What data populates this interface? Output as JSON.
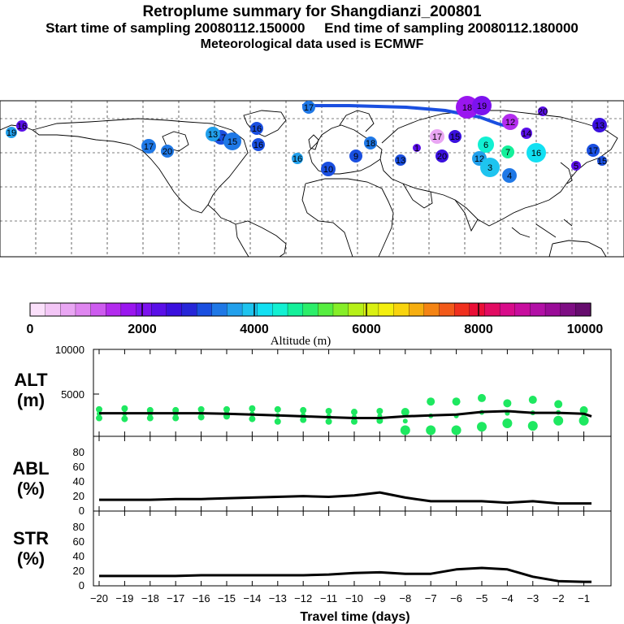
{
  "header": {
    "title": "Retroplume summary for Shangdianzi_200801",
    "sampling": "Start time of sampling 20080112.150000     End time of sampling 20080112.180000",
    "met": "Meteorological data used is ECMWF"
  },
  "colors": {
    "background": "#ffffff",
    "plume_green": "#1ee860",
    "path_blue": "#1a4fe0",
    "line": "#000000",
    "colorbar": [
      "#fbe0fb",
      "#f3c6f6",
      "#e9a6f3",
      "#df86f0",
      "#cd5bef",
      "#b32cee",
      "#9a16ef",
      "#7c12ee",
      "#5a0fe8",
      "#3a10de",
      "#2626d8",
      "#1a4fe0",
      "#1f78e6",
      "#22a0ec",
      "#1ec4ef",
      "#12e0f2",
      "#12f0d2",
      "#14f09a",
      "#2cee6a",
      "#56ee40",
      "#86ee28",
      "#b6f018",
      "#daf012",
      "#f4ef0e",
      "#f8d40e",
      "#f6ae10",
      "#f48414",
      "#f25a1a",
      "#f0301e",
      "#ea0e36",
      "#e20c62",
      "#d80c8a",
      "#c80e9e",
      "#b210a6",
      "#9a0c98",
      "#7e0e84",
      "#660c6e"
    ]
  },
  "colorbar": {
    "ticks": [
      "0",
      "2000",
      "4000",
      "6000",
      "8000",
      "10000"
    ],
    "title": "Altitude (m)"
  },
  "map_markers": [
    {
      "label": "16",
      "color": "#5a0fe8",
      "size": 7
    },
    {
      "label": "17",
      "color": "#1f78e6",
      "size": 8
    },
    {
      "label": "18",
      "color": "#9a16ef",
      "size": 14
    },
    {
      "label": "19",
      "color": "#7c12ee",
      "size": 12
    },
    {
      "label": "12",
      "color": "#b32cee",
      "size": 10
    },
    {
      "label": "20",
      "color": "#5a0fe8",
      "size": 6
    },
    {
      "label": "13",
      "color": "#3a10de",
      "size": 9
    },
    {
      "label": "14",
      "color": "#5a0fe8",
      "size": 7
    },
    {
      "label": "15",
      "color": "#3a10de",
      "size": 8
    },
    {
      "label": "16",
      "color": "#12e0f2",
      "size": 12
    },
    {
      "label": "6",
      "color": "#12f0d2",
      "size": 10
    },
    {
      "label": "17",
      "color": "#e9a6f3",
      "size": 9
    },
    {
      "label": "12",
      "color": "#22a0ec",
      "size": 9
    },
    {
      "label": "7",
      "color": "#14f09a",
      "size": 8
    },
    {
      "label": "4",
      "color": "#1f78e6",
      "size": 9
    },
    {
      "label": "3",
      "color": "#1ec4ef",
      "size": 12
    },
    {
      "label": "1",
      "color": "#5a0fe8",
      "size": 5
    },
    {
      "label": "5",
      "color": "#5a0fe8",
      "size": 6
    },
    {
      "label": "10",
      "color": "#1a4fe0",
      "size": 9
    },
    {
      "label": "9",
      "color": "#1a4fe0",
      "size": 8
    },
    {
      "label": "16",
      "color": "#1a4fe0",
      "size": 8
    },
    {
      "label": "17",
      "color": "#1a4fe0",
      "size": 9
    },
    {
      "label": "15",
      "color": "#1f78e6",
      "size": 11
    },
    {
      "label": "13",
      "color": "#22a0ec",
      "size": 9
    },
    {
      "label": "16",
      "color": "#1a4fe0",
      "size": 8
    },
    {
      "label": "17",
      "color": "#1f78e6",
      "size": 9
    },
    {
      "label": "20",
      "color": "#1f78e6",
      "size": 8
    },
    {
      "label": "19",
      "color": "#22a0ec",
      "size": 7
    },
    {
      "label": "18",
      "color": "#1f78e6",
      "size": 8
    },
    {
      "label": "13",
      "color": "#1a4fe0",
      "size": 7
    },
    {
      "label": "15",
      "color": "#1a4fe0",
      "size": 6
    },
    {
      "label": "20",
      "color": "#3a10de",
      "size": 8
    },
    {
      "label": "17",
      "color": "#1a4fe0",
      "size": 8
    },
    {
      "label": "16",
      "color": "#22a0ec",
      "size": 7
    }
  ],
  "chart_data": [
    {
      "type": "scatter",
      "panel": "ALT",
      "ylabel": "ALT\n(m)",
      "ylabel_line1": "ALT",
      "ylabel_line2": "(m)",
      "ylim": [
        0,
        10000
      ],
      "yticks": [
        "5000",
        "10000"
      ],
      "x": [
        -20,
        -19,
        -18,
        -17,
        -16,
        -15,
        -14,
        -13,
        -12,
        -11,
        -10,
        -9,
        -8,
        -7,
        -6,
        -5,
        -4,
        -3,
        -2,
        -1
      ],
      "series": [
        {
          "name": "mean altitude",
          "values": [
            2650,
            2650,
            2650,
            2650,
            2650,
            2600,
            2500,
            2400,
            2300,
            2200,
            2150,
            2150,
            2300,
            2500,
            2600,
            2900,
            2900,
            2800,
            2700,
            2700
          ]
        },
        {
          "name": "plume clusters low",
          "values": [
            2100,
            2000,
            2100,
            2100,
            2200,
            2300,
            2000,
            1700,
            1900,
            1700,
            1700,
            1800,
            700,
            700,
            700,
            1100,
            1500,
            1200,
            1800,
            1800
          ]
        },
        {
          "name": "plume clusters high",
          "values": [
            3100,
            3200,
            3000,
            3000,
            3100,
            3100,
            3200,
            3100,
            3000,
            2900,
            2800,
            2900,
            2800,
            4000,
            4000,
            4400,
            3800,
            4200,
            3700,
            3000
          ]
        }
      ],
      "fine_x": [
        -20,
        -19,
        -18,
        -17,
        -16,
        -15,
        -14,
        -13,
        -12,
        -11,
        -10,
        -9,
        -8,
        -7,
        -6,
        -5,
        -4,
        -3,
        -2,
        -1,
        -0.7
      ],
      "line": [
        2650,
        2650,
        2650,
        2650,
        2650,
        2600,
        2500,
        2400,
        2300,
        2200,
        2100,
        2100,
        2300,
        2400,
        2500,
        2800,
        2900,
        2700,
        2700,
        2600,
        2300
      ]
    },
    {
      "type": "line",
      "panel": "ABL",
      "ylabel_line1": "ABL",
      "ylabel_line2": "(%)",
      "ylim": [
        0,
        100
      ],
      "yticks": [
        "0",
        "20",
        "40",
        "60",
        "80"
      ],
      "x": [
        -20,
        -19,
        -18,
        -17,
        -16,
        -15,
        -14,
        -13,
        -12,
        -11,
        -10,
        -9,
        -8,
        -7,
        -6,
        -5,
        -4,
        -3,
        -2,
        -1,
        -0.7
      ],
      "values": [
        11,
        11,
        11,
        12,
        12,
        13,
        14,
        15,
        16,
        15,
        17,
        21,
        14,
        9,
        9,
        9,
        7,
        9,
        6,
        6,
        6
      ]
    },
    {
      "type": "line",
      "panel": "STR",
      "ylabel_line1": "STR",
      "ylabel_line2": "(%)",
      "ylim": [
        0,
        100
      ],
      "yticks": [
        "0",
        "20",
        "40",
        "60",
        "80"
      ],
      "x": [
        -20,
        -19,
        -18,
        -17,
        -16,
        -15,
        -14,
        -13,
        -12,
        -11,
        -10,
        -9,
        -8,
        -7,
        -6,
        -5,
        -4,
        -3,
        -2,
        -1,
        -0.7
      ],
      "values": [
        9,
        9,
        9,
        9,
        10,
        10,
        10,
        10,
        10,
        11,
        13,
        14,
        12,
        12,
        18,
        20,
        18,
        8,
        2,
        1,
        1
      ],
      "xlabel": "Travel time (days)",
      "xticks": [
        "−20",
        "−19",
        "−18",
        "−17",
        "−16",
        "−15",
        "−14",
        "−13",
        "−12",
        "−11",
        "−10",
        "−9",
        "−8",
        "−7",
        "−6",
        "−5",
        "−4",
        "−3",
        "−2",
        "−1"
      ]
    }
  ]
}
